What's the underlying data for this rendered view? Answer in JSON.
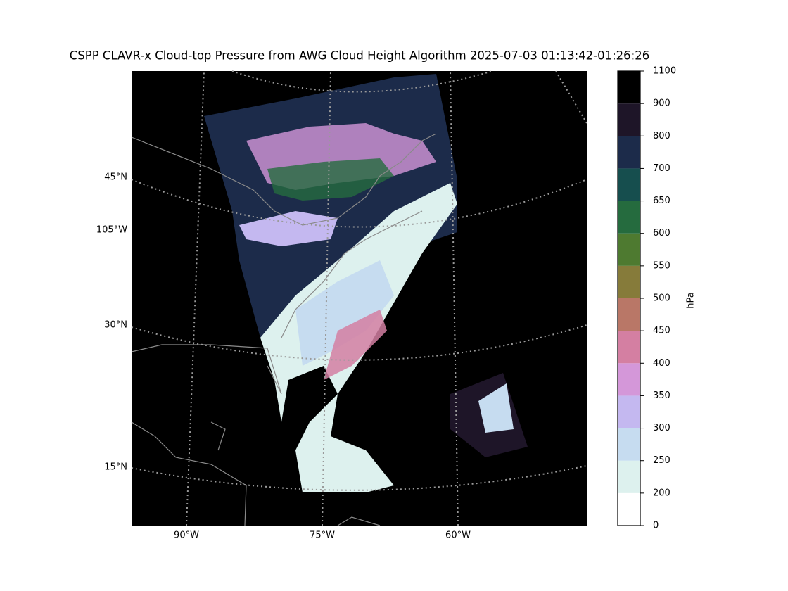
{
  "title": "CSPP CLAVR-x Cloud-top Pressure from AWG Cloud Height Algorithm 2025-07-03 01:13:42-01:26:26",
  "map": {
    "lat_labels": [
      "45°N",
      "105°W",
      "30°N",
      "15°N"
    ],
    "lon_labels": [
      "90°W",
      "75°W",
      "60°W"
    ]
  },
  "colorbar": {
    "label": "hPa",
    "ticks": [
      0,
      200,
      250,
      300,
      350,
      400,
      450,
      500,
      550,
      600,
      650,
      700,
      800,
      900,
      1100
    ],
    "colors": [
      "#ffffff",
      "#ddf1ee",
      "#c6dcf0",
      "#c4b8f0",
      "#d497d9",
      "#d47fa2",
      "#b97767",
      "#867b3a",
      "#4e7a30",
      "#256b3e",
      "#164e4e",
      "#1c2b4a",
      "#1e1528",
      "#000000"
    ]
  }
}
